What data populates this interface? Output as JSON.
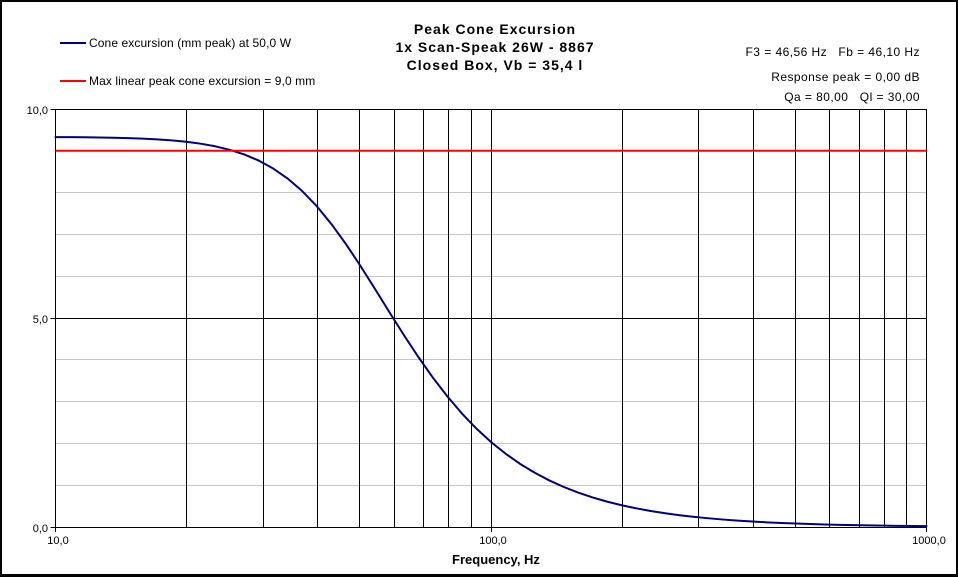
{
  "page": {
    "background": "#ffffff",
    "border_color": "#000000"
  },
  "legend": {
    "items": [
      {
        "label": "Cone excursion (mm peak) at 50,0 W",
        "color": "#000080"
      },
      {
        "label": "Max linear peak cone excursion = 9,0 mm",
        "color": "#ff0000"
      }
    ]
  },
  "title": {
    "line1": "Peak Cone Excursion",
    "line2": "1x Scan-Speak 26W - 8867",
    "line3": "Closed Box, Vb = 35,4 l"
  },
  "stats": {
    "line1": "F3 = 46,56 Hz   Fb = 46,10 Hz",
    "line2": "Response peak = 0,00 dB",
    "line3": "Qa = 80,00   Ql = 30,00"
  },
  "chart_data": {
    "type": "line",
    "title": "Peak Cone Excursion",
    "subtitle": [
      "1x Scan-Speak 26W - 8867",
      "Closed Box, Vb = 35,4 l"
    ],
    "xlabel": "Frequency, Hz",
    "ylabel": "",
    "x_scale": "log",
    "xlim": [
      10,
      1000
    ],
    "ylim": [
      0,
      10
    ],
    "x_ticks": [
      {
        "value": 10,
        "label": "10,0"
      },
      {
        "value": 100,
        "label": "100,0"
      },
      {
        "value": 1000,
        "label": "1000,0"
      }
    ],
    "y_ticks": [
      {
        "value": 10,
        "label": "10,0"
      },
      {
        "value": 5,
        "label": "5,0"
      },
      {
        "value": 0,
        "label": "0,0"
      }
    ],
    "x_gridlines": [
      20,
      30,
      40,
      50,
      60,
      70,
      80,
      90,
      100,
      200,
      300,
      400,
      500,
      600,
      700,
      800,
      900,
      1000
    ],
    "y_gridlines_minor": [
      1,
      2,
      3,
      4,
      6,
      7,
      8,
      9
    ],
    "y_gridlines_major": [
      5
    ],
    "grid_color_major": "#000000",
    "grid_color_minor": "#c6c6c6",
    "axis_color": "#000000",
    "legend_position": "top-left",
    "series": [
      {
        "name": "Cone excursion (mm peak) at 50,0 W",
        "color": "#000080",
        "width": 2,
        "points": [
          [
            10.0,
            9.327
          ],
          [
            10.8,
            9.326
          ],
          [
            11.66,
            9.323
          ],
          [
            12.59,
            9.318
          ],
          [
            13.59,
            9.312
          ],
          [
            14.68,
            9.303
          ],
          [
            15.85,
            9.291
          ],
          [
            17.11,
            9.274
          ],
          [
            18.48,
            9.249
          ],
          [
            19.95,
            9.216
          ],
          [
            21.54,
            9.17
          ],
          [
            23.26,
            9.108
          ],
          [
            25.12,
            9.024
          ],
          [
            27.12,
            8.912
          ],
          [
            29.29,
            8.766
          ],
          [
            31.62,
            8.576
          ],
          [
            34.15,
            8.334
          ],
          [
            36.87,
            8.035
          ],
          [
            39.81,
            7.674
          ],
          [
            42.99,
            7.25
          ],
          [
            46.42,
            6.772
          ],
          [
            50.12,
            6.25
          ],
          [
            54.12,
            5.7
          ],
          [
            58.43,
            5.141
          ],
          [
            63.1,
            4.591
          ],
          [
            68.13,
            4.064
          ],
          [
            73.56,
            3.572
          ],
          [
            79.43,
            3.122
          ],
          [
            85.77,
            2.715
          ],
          [
            92.61,
            2.353
          ],
          [
            100.0,
            2.034
          ],
          [
            107.98,
            1.755
          ],
          [
            116.59,
            1.511
          ],
          [
            125.89,
            1.3
          ],
          [
            135.94,
            1.117
          ],
          [
            146.78,
            0.96
          ],
          [
            158.49,
            0.824
          ],
          [
            171.13,
            0.707
          ],
          [
            184.78,
            0.607
          ],
          [
            199.53,
            0.521
          ],
          [
            215.44,
            0.447
          ],
          [
            232.63,
            0.383
          ],
          [
            251.19,
            0.329
          ],
          [
            271.23,
            0.282
          ],
          [
            292.86,
            0.242
          ],
          [
            316.23,
            0.208
          ],
          [
            341.45,
            0.178
          ],
          [
            368.69,
            0.153
          ],
          [
            398.11,
            0.131
          ],
          [
            429.87,
            0.112
          ],
          [
            464.16,
            0.096
          ],
          [
            501.19,
            0.083
          ],
          [
            541.17,
            0.071
          ],
          [
            584.34,
            0.061
          ],
          [
            630.96,
            0.052
          ],
          [
            681.29,
            0.045
          ],
          [
            735.64,
            0.038
          ],
          [
            794.33,
            0.033
          ],
          [
            857.7,
            0.028
          ],
          [
            926.12,
            0.024
          ],
          [
            1000.0,
            0.021
          ]
        ]
      },
      {
        "name": "Max linear peak cone excursion = 9,0 mm",
        "color": "#ff0000",
        "width": 2,
        "hline": 9.0
      }
    ]
  }
}
